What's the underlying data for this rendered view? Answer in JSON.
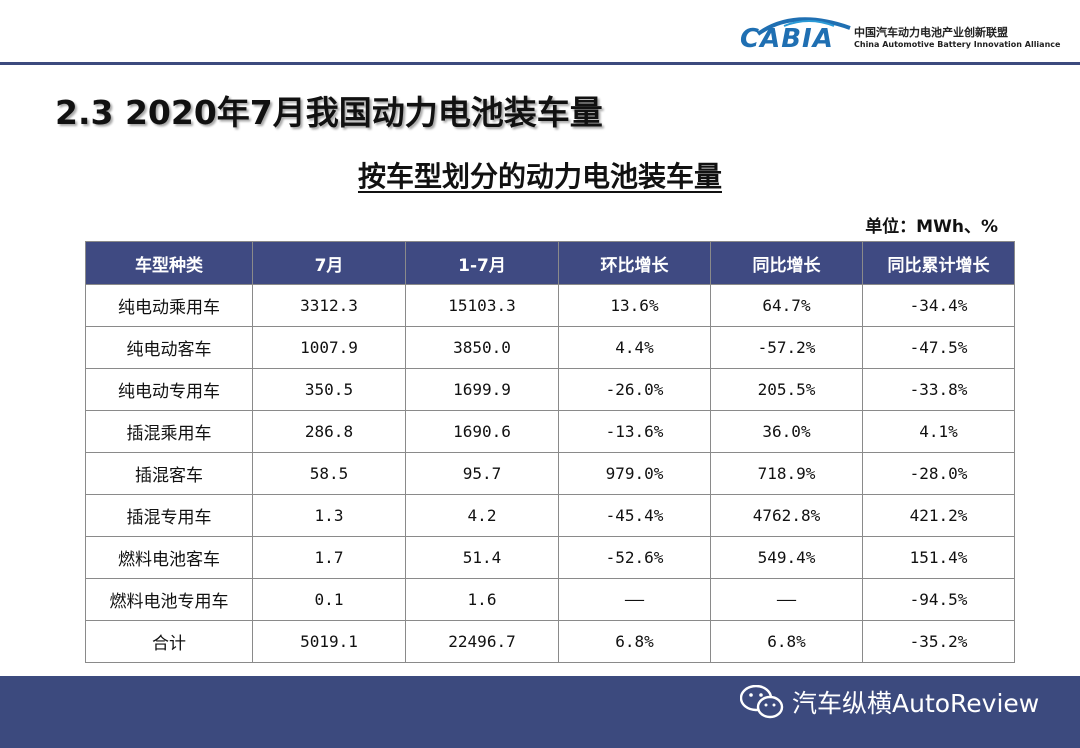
{
  "header": {
    "logo_text": "CABIA",
    "org_name_cn": "中国汽车动力电池产业创新联盟",
    "org_name_en": "China Automotive Battery Innovation Alliance"
  },
  "section_title": "2.3 2020年7月我国动力电池装车量",
  "table_title": "按车型划分的动力电池装车量",
  "unit_label": "单位：MWh、%",
  "table": {
    "headers": [
      "车型种类",
      "7月",
      "1-7月",
      "环比增长",
      "同比增长",
      "同比累计增长"
    ],
    "rows": [
      [
        "纯电动乘用车",
        "3312.3",
        "15103.3",
        "13.6%",
        "64.7%",
        "-34.4%"
      ],
      [
        "纯电动客车",
        "1007.9",
        "3850.0",
        "4.4%",
        "-57.2%",
        "-47.5%"
      ],
      [
        "纯电动专用车",
        "350.5",
        "1699.9",
        "-26.0%",
        "205.5%",
        "-33.8%"
      ],
      [
        "插混乘用车",
        "286.8",
        "1690.6",
        "-13.6%",
        "36.0%",
        "4.1%"
      ],
      [
        "插混客车",
        "58.5",
        "95.7",
        "979.0%",
        "718.9%",
        "-28.0%"
      ],
      [
        "插混专用车",
        "1.3",
        "4.2",
        "-45.4%",
        "4762.8%",
        "421.2%"
      ],
      [
        "燃料电池客车",
        "1.7",
        "51.4",
        "-52.6%",
        "549.4%",
        "151.4%"
      ],
      [
        "燃料电池专用车",
        "0.1",
        "1.6",
        "——",
        "——",
        "-94.5%"
      ],
      [
        "合计",
        "5019.1",
        "22496.7",
        "6.8%",
        "6.8%",
        "-35.2%"
      ]
    ]
  },
  "footer": {
    "brand_icon": "wechat-icon",
    "brand_text": "汽车纵横AutoReview"
  },
  "colors": {
    "header_bg": "#3f4a82",
    "footer_bg": "#3c4a7e",
    "logo_blue": "#1f6fb2"
  }
}
